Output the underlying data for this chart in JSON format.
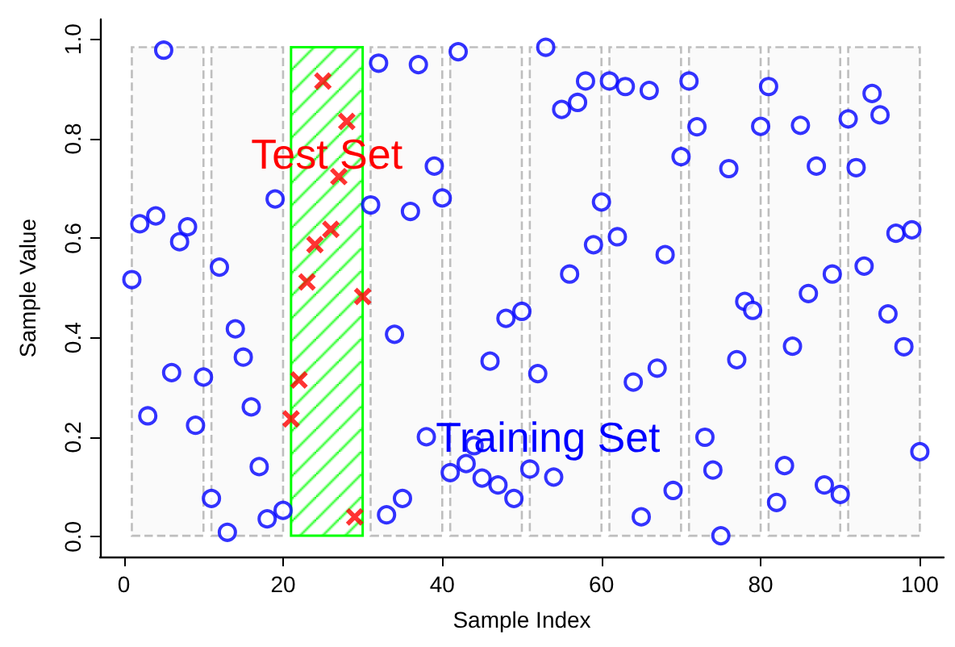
{
  "chart_data": {
    "type": "scatter",
    "xlabel": "Sample Index",
    "ylabel": "Sample Value",
    "xlim": [
      -3,
      103
    ],
    "xticks": [
      0,
      20,
      40,
      60,
      80,
      100
    ],
    "ylim": [
      -0.04,
      1.04
    ],
    "yticks": [
      {
        "value": 0,
        "label": "0.0"
      },
      {
        "value": 0.2,
        "label": "0.2"
      },
      {
        "value": 0.4,
        "label": "0.4"
      },
      {
        "value": 0.6,
        "label": "0.6"
      },
      {
        "value": 0.8,
        "label": "0.8"
      },
      {
        "value": 1,
        "label": "1.0"
      }
    ],
    "grid": false,
    "legend": false,
    "series": [
      {
        "name": "Training Set",
        "color": "#0000ff",
        "marker": "circle",
        "x": [
          1,
          2,
          3,
          4,
          5,
          6,
          7,
          8,
          9,
          10,
          11,
          12,
          13,
          14,
          15,
          16,
          17,
          18,
          19,
          20,
          31,
          32,
          33,
          34,
          35,
          36,
          37,
          38,
          39,
          40,
          41,
          42,
          43,
          44,
          45,
          46,
          47,
          48,
          49,
          50,
          51,
          52,
          53,
          54,
          55,
          56,
          57,
          58,
          59,
          60,
          61,
          62,
          63,
          64,
          65,
          66,
          67,
          68,
          69,
          70,
          71,
          72,
          73,
          74,
          75,
          76,
          77,
          78,
          79,
          80,
          81,
          82,
          83,
          84,
          85,
          86,
          87,
          88,
          89,
          90,
          91,
          92,
          93,
          94,
          95,
          96,
          97,
          98,
          99,
          100
        ],
        "values": [
          0.517,
          0.629,
          0.243,
          0.645,
          0.978,
          0.33,
          0.593,
          0.623,
          0.224,
          0.321,
          0.077,
          0.542,
          0.009,
          0.418,
          0.361,
          0.261,
          0.141,
          0.036,
          0.679,
          0.053,
          0.667,
          0.952,
          0.044,
          0.407,
          0.077,
          0.654,
          0.949,
          0.201,
          0.745,
          0.681,
          0.129,
          0.975,
          0.147,
          0.183,
          0.118,
          0.353,
          0.104,
          0.439,
          0.077,
          0.453,
          0.136,
          0.328,
          0.984,
          0.12,
          0.859,
          0.528,
          0.873,
          0.916,
          0.587,
          0.673,
          0.916,
          0.603,
          0.905,
          0.311,
          0.04,
          0.897,
          0.339,
          0.567,
          0.093,
          0.764,
          0.916,
          0.824,
          0.2,
          0.134,
          0.002,
          0.74,
          0.356,
          0.473,
          0.455,
          0.825,
          0.905,
          0.069,
          0.143,
          0.383,
          0.827,
          0.489,
          0.745,
          0.104,
          0.528,
          0.085,
          0.84,
          0.742,
          0.544,
          0.891,
          0.848,
          0.448,
          0.61,
          0.382,
          0.617,
          0.171
        ]
      },
      {
        "color": "#ff0000",
        "marker": "cross",
        "x": [
          21,
          22,
          23,
          24,
          25,
          26,
          27,
          28,
          29,
          30
        ],
        "values": [
          0.237,
          0.315,
          0.512,
          0.587,
          0.916,
          0.618,
          0.724,
          0.835,
          0.04,
          0.483
        ]
      }
    ],
    "bands": [
      {
        "axis": "x",
        "from": 1,
        "to": 10,
        "color": "#bebebe"
      },
      {
        "axis": "x",
        "from": 11,
        "to": 20,
        "color": "#bebebe"
      },
      {
        "axis": "x",
        "from": 21,
        "to": 30,
        "color": "#00ff00",
        "label": "Test Set"
      },
      {
        "axis": "x",
        "from": 31,
        "to": 40,
        "color": "#bebebe"
      },
      {
        "axis": "x",
        "from": 41,
        "to": 50,
        "color": "#bebebe"
      },
      {
        "axis": "x",
        "from": 51,
        "to": 60,
        "color": "#bebebe"
      },
      {
        "axis": "x",
        "from": 61,
        "to": 70,
        "color": "#bebebe"
      },
      {
        "axis": "x",
        "from": 71,
        "to": 80,
        "color": "#bebebe"
      },
      {
        "axis": "x",
        "from": 81,
        "to": 90,
        "color": "#bebebe"
      },
      {
        "axis": "x",
        "from": 91,
        "to": 100,
        "color": "#bebebe"
      }
    ]
  }
}
